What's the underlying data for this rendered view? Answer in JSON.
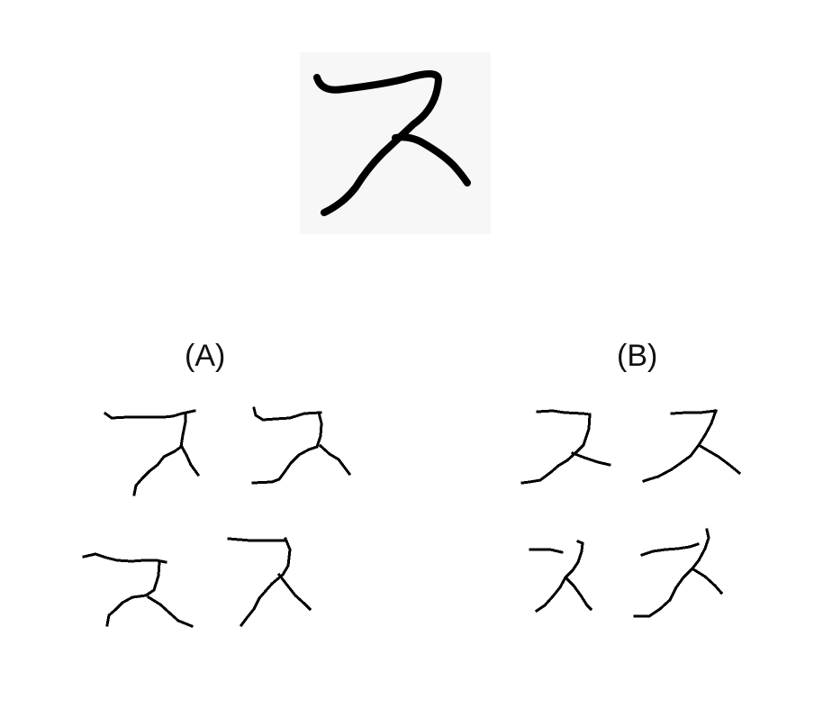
{
  "figure": {
    "hero_glyph": "handwritten-katakana-su",
    "groups": [
      {
        "label": "(A)",
        "sample_count": 4
      },
      {
        "label": "(B)",
        "sample_count": 4
      }
    ],
    "stroke_color": "#000000",
    "hero_background": "#f7f7f7"
  }
}
